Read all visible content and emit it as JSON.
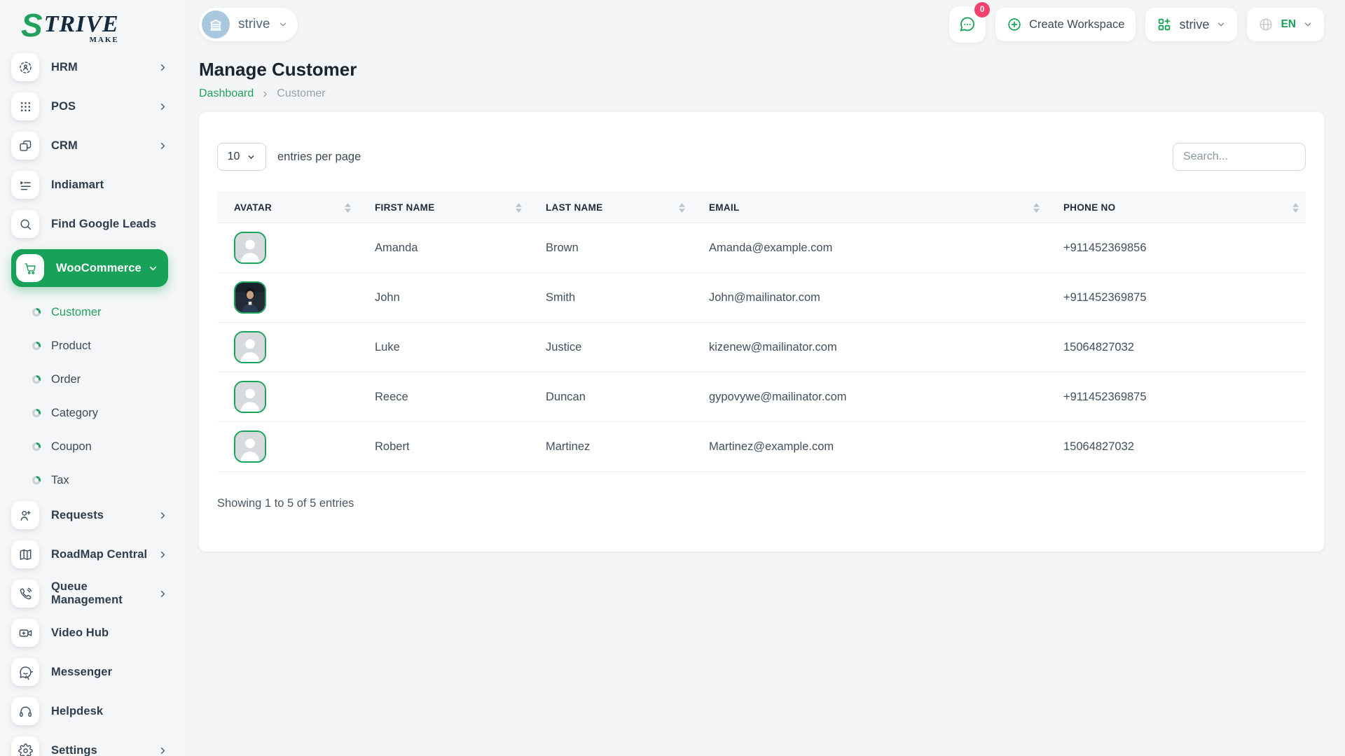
{
  "brand": {
    "name_prefix": "S",
    "name_rest": "TRIVE",
    "tagline": "MAKE"
  },
  "topbar": {
    "workspace_current": "strive",
    "chat_badge_count": "0",
    "create_workspace_label": "Create Workspace",
    "workspace_switcher_label": "strive",
    "language": "EN"
  },
  "sidebar": {
    "items": [
      {
        "label": "HRM",
        "icon": "hrm-icon",
        "chevron": "right",
        "active": false
      },
      {
        "label": "POS",
        "icon": "pos-grid-icon",
        "chevron": "right",
        "active": false
      },
      {
        "label": "CRM",
        "icon": "crm-icon",
        "chevron": "right",
        "active": false
      },
      {
        "label": "Indiamart",
        "icon": "indiamart-list-icon",
        "chevron": "",
        "active": false
      },
      {
        "label": "Find Google Leads",
        "icon": "search-icon",
        "chevron": "",
        "active": false
      },
      {
        "label": "WooCommerce",
        "icon": "cart-icon",
        "chevron": "down",
        "active": true,
        "children": [
          {
            "label": "Customer",
            "active": true
          },
          {
            "label": "Product",
            "active": false
          },
          {
            "label": "Order",
            "active": false
          },
          {
            "label": "Category",
            "active": false
          },
          {
            "label": "Coupon",
            "active": false
          },
          {
            "label": "Tax",
            "active": false
          }
        ]
      },
      {
        "label": "Requests",
        "icon": "user-plus-icon",
        "chevron": "right",
        "active": false
      },
      {
        "label": "RoadMap Central",
        "icon": "map-icon",
        "chevron": "right",
        "active": false
      },
      {
        "label": "Queue Management",
        "icon": "phone-call-icon",
        "chevron": "right",
        "active": false
      },
      {
        "label": "Video Hub",
        "icon": "video-camera-icon",
        "chevron": "",
        "active": false
      },
      {
        "label": "Messenger",
        "icon": "chat-bubble-icon",
        "chevron": "",
        "active": false
      },
      {
        "label": "Helpdesk",
        "icon": "headset-icon",
        "chevron": "",
        "active": false
      },
      {
        "label": "Settings",
        "icon": "gear-icon",
        "chevron": "right",
        "active": false
      }
    ]
  },
  "page": {
    "title": "Manage Customer",
    "breadcrumb": {
      "0": "Dashboard",
      "1": "Customer"
    }
  },
  "controls": {
    "page_size": "10",
    "entries_label": "entries per page",
    "search_placeholder": "Search..."
  },
  "table": {
    "columns": {
      "0": "AVATAR",
      "1": "FIRST NAME",
      "2": "LAST NAME",
      "3": "EMAIL",
      "4": "PHONE NO"
    },
    "rows": [
      {
        "avatar": "placeholder-avatar",
        "first": "Amanda",
        "last": "Brown",
        "email": "Amanda@example.com",
        "phone": "+911452369856"
      },
      {
        "avatar": "photo-avatar",
        "first": "John",
        "last": "Smith",
        "email": "John@mailinator.com",
        "phone": "+911452369875"
      },
      {
        "avatar": "placeholder-avatar",
        "first": "Luke",
        "last": "Justice",
        "email": "kizenew@mailinator.com",
        "phone": "15064827032"
      },
      {
        "avatar": "placeholder-avatar",
        "first": "Reece",
        "last": "Duncan",
        "email": "gypovywe@mailinator.com",
        "phone": "+911452369875"
      },
      {
        "avatar": "placeholder-avatar",
        "first": "Robert",
        "last": "Martinez",
        "email": "Martinez@example.com",
        "phone": "15064827032"
      }
    ],
    "footer": "Showing 1 to 5 of 5 entries"
  },
  "colors": {
    "accent_green": "#17a258",
    "badge_pink": "#f1416c",
    "page_bg": "#f3f5f6",
    "card_bg": "#ffffff",
    "breadcrumb_link": "#21a15b"
  }
}
